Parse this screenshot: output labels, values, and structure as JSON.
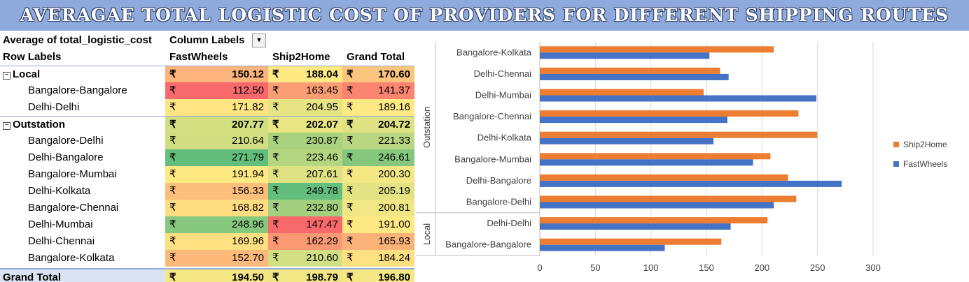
{
  "title": "AVERAGAE TOTAL LOGISTIC COST OF PROVIDERS FOR DIFFERENT SHIPPING ROUTES",
  "pivot": {
    "value_header": "Average of total_logistic_cost",
    "column_labels": "Column Labels",
    "row_labels": "Row Labels",
    "columns": [
      "FastWheels",
      "Ship2Home",
      "Grand Total"
    ],
    "currency": "₹",
    "rows": [
      {
        "label": "Local",
        "group": true,
        "values": [
          "150.12",
          "188.04",
          "170.60"
        ],
        "colors": [
          "#fcb47a",
          "#fee983",
          "#fcc57d"
        ]
      },
      {
        "label": "Bangalore-Bangalore",
        "group": false,
        "values": [
          "112.50",
          "163.45",
          "141.37"
        ],
        "colors": [
          "#f8696b",
          "#fa9c74",
          "#fa8470"
        ]
      },
      {
        "label": "Delhi-Delhi",
        "group": false,
        "values": [
          "171.82",
          "204.95",
          "189.16"
        ],
        "colors": [
          "#fee482",
          "#e6e483",
          "#fee983"
        ]
      },
      {
        "label": "Outstation",
        "group": true,
        "values": [
          "207.77",
          "202.07",
          "204.72"
        ],
        "colors": [
          "#d2df81",
          "#e8e583",
          "#dfe282"
        ]
      },
      {
        "label": "Bangalore-Delhi",
        "group": false,
        "values": [
          "210.64",
          "230.87",
          "221.33"
        ],
        "colors": [
          "#d0de81",
          "#a9d27f",
          "#b8d780"
        ]
      },
      {
        "label": "Delhi-Bangalore",
        "group": false,
        "values": [
          "271.79",
          "223.46",
          "246.61"
        ],
        "colors": [
          "#63be7b",
          "#b5d680",
          "#85c87d"
        ]
      },
      {
        "label": "Bangalore-Mumbai",
        "group": false,
        "values": [
          "191.94",
          "207.61",
          "200.30"
        ],
        "colors": [
          "#fee983",
          "#dfe282",
          "#f3e884"
        ]
      },
      {
        "label": "Delhi-Kolkata",
        "group": false,
        "values": [
          "156.33",
          "249.78",
          "205.19"
        ],
        "colors": [
          "#fcbf7b",
          "#63be7b",
          "#e3e383"
        ]
      },
      {
        "label": "Bangalore-Chennai",
        "group": false,
        "values": [
          "168.82",
          "232.80",
          "200.81"
        ],
        "colors": [
          "#fedd81",
          "#a2d07f",
          "#f0e784"
        ]
      },
      {
        "label": "Delhi-Mumbai",
        "group": false,
        "values": [
          "248.96",
          "147.47",
          "191.00"
        ],
        "colors": [
          "#86c87d",
          "#f8696b",
          "#fee983"
        ]
      },
      {
        "label": "Delhi-Chennai",
        "group": false,
        "values": [
          "169.96",
          "162.29",
          "165.93"
        ],
        "colors": [
          "#fee081",
          "#fa9873",
          "#fbb279"
        ]
      },
      {
        "label": "Bangalore-Kolkata",
        "group": false,
        "values": [
          "152.70",
          "210.60",
          "184.24"
        ],
        "colors": [
          "#fcb97a",
          "#d2df82",
          "#fee081"
        ]
      }
    ],
    "grand_total": {
      "label": "Grand Total",
      "values": [
        "194.50",
        "198.79",
        "196.80"
      ],
      "colors": [
        "#f5e884",
        "#f0e784",
        "#f5e884"
      ]
    }
  },
  "chart_data": {
    "type": "bar",
    "orientation": "horizontal",
    "categories": [
      "Bangalore-Kolkata",
      "Delhi-Chennai",
      "Delhi-Mumbai",
      "Bangalore-Chennai",
      "Delhi-Kolkata",
      "Bangalore-Mumbai",
      "Delhi-Bangalore",
      "Bangalore-Delhi",
      "Delhi-Delhi",
      "Bangalore-Bangalore"
    ],
    "groups": [
      {
        "name": "Outstation",
        "categories": [
          "Bangalore-Kolkata",
          "Delhi-Chennai",
          "Delhi-Mumbai",
          "Bangalore-Chennai",
          "Delhi-Kolkata",
          "Bangalore-Mumbai",
          "Delhi-Bangalore",
          "Bangalore-Delhi"
        ]
      },
      {
        "name": "Local",
        "categories": [
          "Delhi-Delhi",
          "Bangalore-Bangalore"
        ]
      }
    ],
    "series": [
      {
        "name": "Ship2Home",
        "color": "#ed7d31",
        "values": [
          210.6,
          162.29,
          147.47,
          232.8,
          249.78,
          207.61,
          223.46,
          230.87,
          204.95,
          163.45
        ]
      },
      {
        "name": "FastWheels",
        "color": "#4472c4",
        "values": [
          152.7,
          169.96,
          248.96,
          168.82,
          156.33,
          191.94,
          271.79,
          210.64,
          171.82,
          112.5
        ]
      }
    ],
    "xlim": [
      0,
      300
    ],
    "xticks": [
      0,
      50,
      100,
      150,
      200,
      250,
      300
    ],
    "grid": true,
    "legend": "right"
  }
}
